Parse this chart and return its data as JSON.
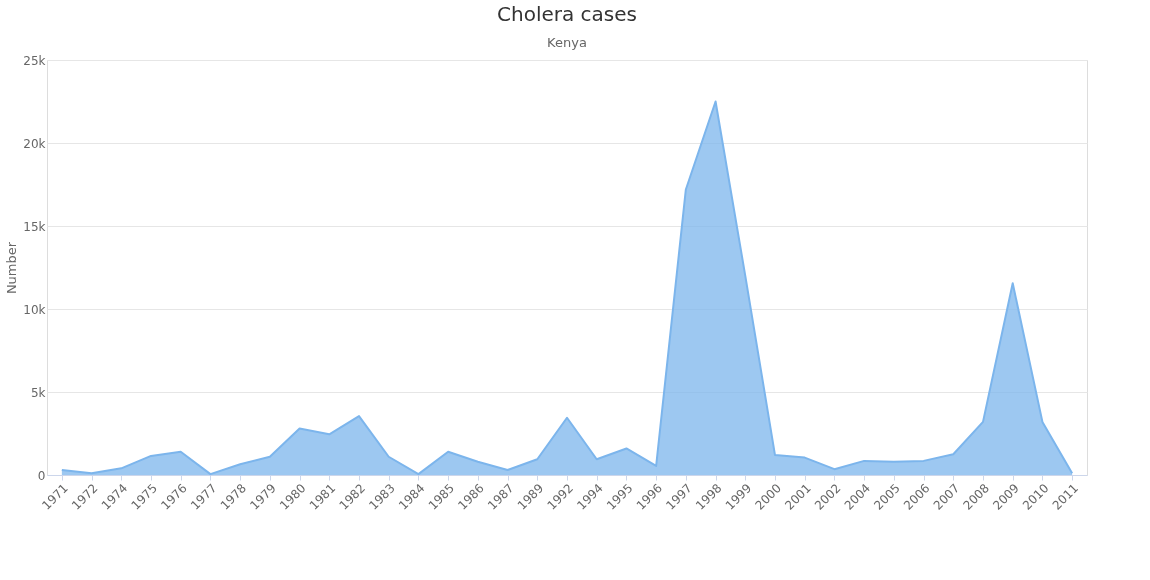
{
  "chart_data": {
    "type": "area",
    "title": "Cholera cases",
    "subtitle": "Kenya",
    "ylabel": "Number",
    "categories": [
      "1971",
      "1972",
      "1974",
      "1975",
      "1976",
      "1977",
      "1978",
      "1979",
      "1980",
      "1981",
      "1982",
      "1983",
      "1984",
      "1985",
      "1986",
      "1987",
      "1989",
      "1992",
      "1994",
      "1995",
      "1996",
      "1997",
      "1998",
      "1999",
      "2000",
      "2001",
      "2002",
      "2004",
      "2005",
      "2006",
      "2007",
      "2008",
      "2009",
      "2010",
      "2011"
    ],
    "series": [
      {
        "color": "#7cb5ec",
        "values": [
          300,
          100,
          400,
          1150,
          1400,
          50,
          650,
          1100,
          2800,
          2450,
          3550,
          1100,
          50,
          1400,
          800,
          300,
          950,
          3450,
          950,
          1600,
          550,
          17200,
          22500,
          12000,
          1200,
          1050,
          350,
          850,
          800,
          850,
          1250,
          3200,
          11550,
          3200,
          100
        ]
      }
    ],
    "ylim": [
      0,
      25000
    ],
    "yticks": [
      0,
      {
        "value": 5000,
        "label": "5k"
      },
      {
        "value": 10000,
        "label": "10k"
      },
      {
        "value": 15000,
        "label": "15k"
      },
      {
        "value": 20000,
        "label": "20k"
      },
      {
        "value": 25000,
        "label": "25k"
      }
    ],
    "grid": "y"
  }
}
